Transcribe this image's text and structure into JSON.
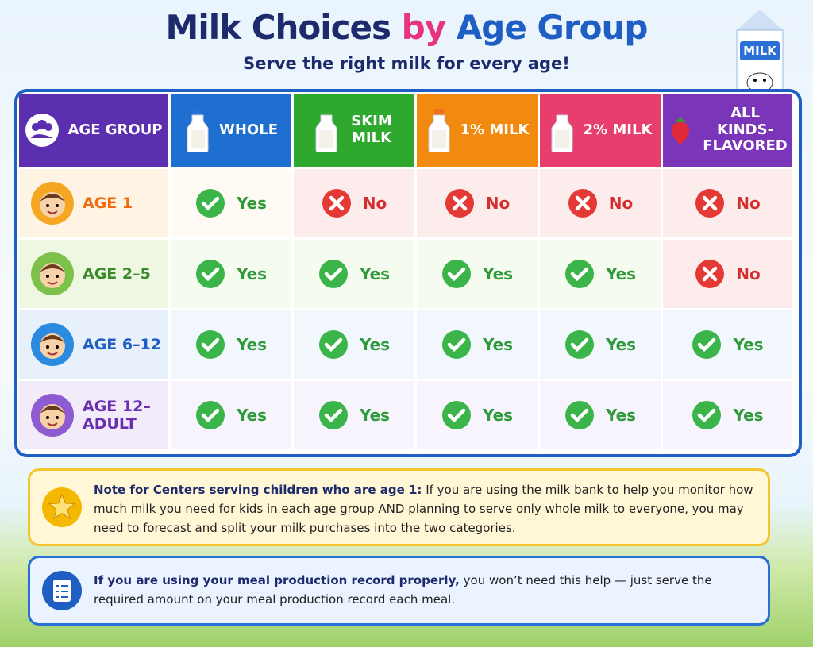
{
  "header": {
    "title_part1": "Milk Choices",
    "title_part2": "by",
    "title_part3": "Age Group",
    "subtitle": "Serve the right milk for every age!",
    "carton_label": "MILK"
  },
  "table": {
    "columns": [
      "AGE GROUP",
      "WHOLE",
      "SKIM MILK",
      "1% MILK",
      "2% MILK",
      "ALL KINDS-FLAVORED"
    ],
    "rows": [
      {
        "label": "AGE 1",
        "cells": [
          "Yes",
          "No",
          "No",
          "No",
          "No"
        ]
      },
      {
        "label": "AGE 2–5",
        "cells": [
          "Yes",
          "Yes",
          "Yes",
          "Yes",
          "No"
        ]
      },
      {
        "label": "AGE 6–12",
        "cells": [
          "Yes",
          "Yes",
          "Yes",
          "Yes",
          "Yes"
        ]
      },
      {
        "label": "AGE 12–ADULT",
        "cells": [
          "Yes",
          "Yes",
          "Yes",
          "Yes",
          "Yes"
        ]
      }
    ]
  },
  "notes": [
    {
      "bold": "Note for Centers serving children who are age 1:",
      "text": "If you are using the milk bank to help you monitor how much milk you need for kids in each age group AND planning to serve only whole milk to everyone, you may need to forecast and split your milk purchases into the two categories."
    },
    {
      "bold": "If you are using your meal production record properly,",
      "text": "you won’t need this help — just serve the required amount on your meal production record each meal."
    }
  ]
}
